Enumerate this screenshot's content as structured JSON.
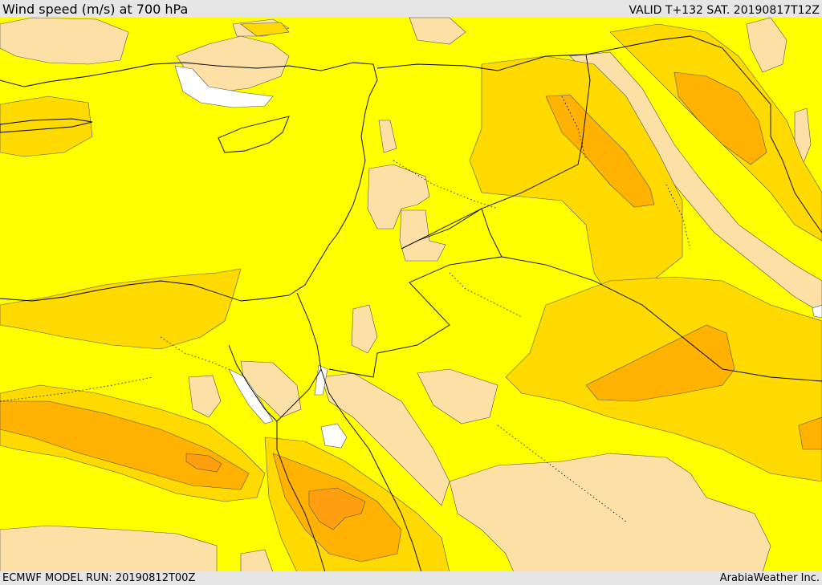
{
  "header": {
    "title": "Wind speed (m/s) at 700 hPa",
    "valid": "VALID T+132 SAT. 20190817T12Z"
  },
  "footer": {
    "model_run": "ECMWF MODEL RUN: 20190812T00Z",
    "credit": "ArabiaWeather Inc."
  },
  "colors": {
    "land_background": "#ffff00",
    "band_low": "#fde0a6",
    "band_mid": "#ffda00",
    "band_high": "#ffb300",
    "band_max": "#ff9f10",
    "calm": "#ffffff",
    "lines": "#000000"
  },
  "map": {
    "type": "filled-contour",
    "variable": "wind speed",
    "units": "m/s",
    "level": "700 hPa"
  }
}
